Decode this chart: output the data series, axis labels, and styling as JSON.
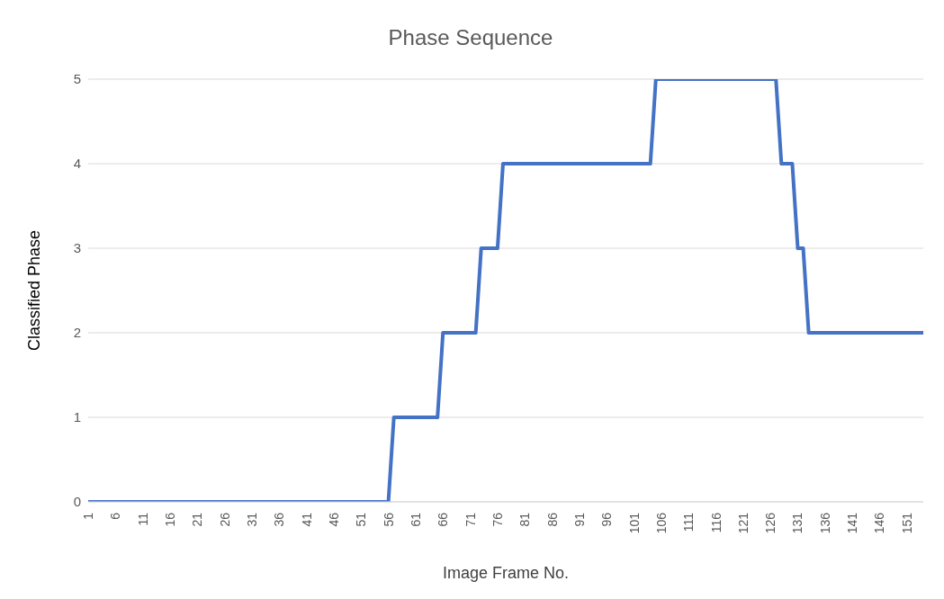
{
  "chart_data": {
    "type": "line",
    "title": "Phase Sequence",
    "xlabel": "Image Frame No.",
    "ylabel": "Classified Phase",
    "categories": [
      "1",
      null,
      null,
      null,
      null,
      "6",
      null,
      null,
      null,
      null,
      "11",
      null,
      null,
      null,
      null,
      "16",
      null,
      null,
      null,
      null,
      "21",
      null,
      null,
      null,
      null,
      "26",
      null,
      null,
      null,
      null,
      "31",
      null,
      null,
      null,
      null,
      "36",
      null,
      null,
      null,
      null,
      "41",
      null,
      null,
      null,
      null,
      "46",
      null,
      null,
      null,
      null,
      "51",
      null,
      null,
      null,
      null,
      "56",
      null,
      null,
      null,
      null,
      "61",
      null,
      null,
      null,
      null,
      "66",
      null,
      null,
      null,
      null,
      "71",
      null,
      null,
      null,
      null,
      "76",
      null,
      null,
      null,
      null,
      "81",
      null,
      null,
      null,
      null,
      "86",
      null,
      null,
      null,
      null,
      "91",
      null,
      null,
      null,
      null,
      "96",
      null,
      null,
      null,
      null,
      "101",
      null,
      null,
      null,
      null,
      "106",
      null,
      null,
      null,
      null,
      "111",
      null,
      null,
      null,
      null,
      "116",
      null,
      null,
      null,
      null,
      "121",
      null,
      null,
      null,
      null,
      "126",
      null,
      null,
      null,
      null,
      "131",
      null,
      null,
      null,
      null,
      "136",
      null,
      null,
      null,
      null,
      "141",
      null,
      null,
      null,
      null,
      "146",
      null,
      null,
      null,
      null,
      "151",
      null,
      null,
      null
    ],
    "series": [
      {
        "color": "#4472c4",
        "values": [
          0,
          0,
          0,
          0,
          0,
          0,
          0,
          0,
          0,
          0,
          0,
          0,
          0,
          0,
          0,
          0,
          0,
          0,
          0,
          0,
          0,
          0,
          0,
          0,
          0,
          0,
          0,
          0,
          0,
          0,
          0,
          0,
          0,
          0,
          0,
          0,
          0,
          0,
          0,
          0,
          0,
          0,
          0,
          0,
          0,
          0,
          0,
          0,
          0,
          0,
          0,
          0,
          0,
          0,
          0,
          0,
          1,
          1,
          1,
          1,
          1,
          1,
          1,
          1,
          1,
          2,
          2,
          2,
          2,
          2,
          2,
          2,
          3,
          3,
          3,
          3,
          4,
          4,
          4,
          4,
          4,
          4,
          4,
          4,
          4,
          4,
          4,
          4,
          4,
          4,
          4,
          4,
          4,
          4,
          4,
          4,
          4,
          4,
          4,
          4,
          4,
          4,
          4,
          4,
          5,
          5,
          5,
          5,
          5,
          5,
          5,
          5,
          5,
          5,
          5,
          5,
          5,
          5,
          5,
          5,
          5,
          5,
          5,
          5,
          5,
          5,
          5,
          4,
          4,
          4,
          3,
          3,
          2,
          2,
          2,
          2,
          2,
          2,
          2,
          2,
          2,
          2,
          2,
          2,
          2,
          2,
          2,
          2,
          2,
          2,
          2,
          2,
          2,
          2
        ]
      }
    ],
    "ylim": [
      0,
      5
    ],
    "yticks": [
      0,
      1,
      2,
      3,
      4,
      5
    ],
    "grid": "y",
    "marker": "none",
    "line_style": "solid"
  }
}
